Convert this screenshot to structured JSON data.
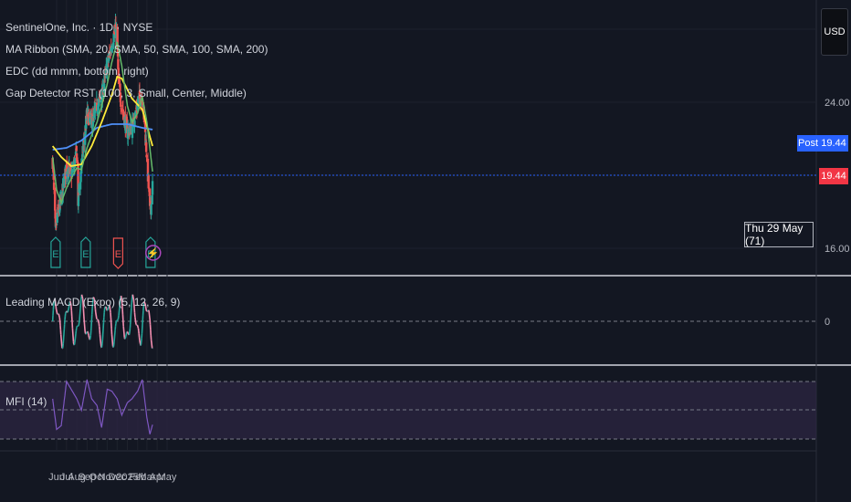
{
  "legend": {
    "symbol": "SentinelOne, Inc. · 1D · NYSE",
    "ma_ribbon": "MA Ribbon (SMA, 20, SMA, 50, SMA, 100, SMA, 200)",
    "edc": "EDC (dd mmm, bottom, right)",
    "gap_detector": "Gap Detector RST (100, 3, Small, Center, Middle)",
    "macd": "Leading MACD (Expo) (5, 12, 26, 9)",
    "mfi": "MFI (14)"
  },
  "currency": "USD",
  "date_tooltip": "Thu 29 May (71)",
  "post_label": "Post",
  "post_price": "19.44",
  "last_price": "19.44",
  "colors": {
    "background": "#131722",
    "up": "#26a69a",
    "down": "#ef5350",
    "sma20": "#66bb6a",
    "sma50": "#ffeb3b",
    "sma100": "#4f8ff7",
    "mfi_line": "#7e57c2",
    "post_tag": "#2962ff",
    "last_tag": "#f23645"
  },
  "chart_data": {
    "type": "candlestick",
    "price_axis": {
      "ticks": [
        "24.00",
        "16.00"
      ],
      "tick_values": [
        24,
        16
      ],
      "range": [
        14.6,
        29.2
      ]
    },
    "macd_axis": {
      "zero_label": "0"
    },
    "x_axis": {
      "labels": [
        "Jun",
        "Jul",
        "Aug",
        "Sep",
        "Oct",
        "Nov",
        "Dec",
        "2025",
        "Feb",
        "Mar",
        "Apr",
        "May"
      ]
    },
    "price_path": {
      "dates": [
        "2024-05-20",
        "2024-05-29",
        "2024-06-01",
        "2024-06-15",
        "2024-07-01",
        "2024-07-15",
        "2024-08-01",
        "2024-08-05",
        "2024-08-15",
        "2024-09-01",
        "2024-09-15",
        "2024-10-01",
        "2024-10-15",
        "2024-11-01",
        "2024-11-15",
        "2024-11-25",
        "2024-12-01",
        "2024-12-05",
        "2024-12-15",
        "2025-01-01",
        "2025-01-15",
        "2025-02-01",
        "2025-02-15",
        "2025-03-01",
        "2025-03-10",
        "2025-03-14",
        "2025-03-18"
      ],
      "closes": [
        20.8,
        16.8,
        17.6,
        18.6,
        20.5,
        20.0,
        21.2,
        18.6,
        20.5,
        23.4,
        22.8,
        23.8,
        24.2,
        26.0,
        27.2,
        28.0,
        27.6,
        25.0,
        23.8,
        22.4,
        22.6,
        23.9,
        24.5,
        21.0,
        18.0,
        18.4,
        19.44
      ]
    },
    "sma20": {
      "dates": [
        "2024-05-20",
        "2024-06-01",
        "2024-06-15",
        "2024-07-01",
        "2024-07-15",
        "2024-08-01",
        "2024-08-15",
        "2024-09-01",
        "2024-09-15",
        "2024-10-01",
        "2024-10-15",
        "2024-11-01",
        "2024-11-15",
        "2024-12-01",
        "2024-12-15",
        "2025-01-01",
        "2025-01-15",
        "2025-02-01",
        "2025-02-15",
        "2025-03-01",
        "2025-03-18"
      ],
      "values": [
        21.0,
        19.2,
        18.5,
        19.3,
        19.8,
        20.4,
        20.3,
        21.5,
        22.2,
        22.9,
        23.8,
        25.0,
        26.2,
        27.3,
        26.0,
        23.8,
        22.9,
        23.4,
        24.3,
        22.9,
        20.2
      ]
    },
    "sma50": {
      "dates": [
        "2024-05-20",
        "2024-06-15",
        "2024-07-15",
        "2024-08-15",
        "2024-09-15",
        "2024-10-15",
        "2024-11-15",
        "2024-12-01",
        "2024-12-15",
        "2025-01-15",
        "2025-02-15",
        "2025-03-18"
      ],
      "values": [
        21.6,
        21.0,
        20.5,
        20.6,
        21.6,
        22.9,
        24.4,
        25.4,
        25.3,
        24.2,
        23.6,
        21.6
      ]
    },
    "sma100": {
      "dates": [
        "2024-05-20",
        "2024-07-01",
        "2024-08-15",
        "2024-10-01",
        "2024-11-15",
        "2025-01-01",
        "2025-02-15",
        "2025-03-18"
      ],
      "values": [
        21.4,
        21.5,
        21.9,
        22.6,
        22.8,
        22.8,
        22.6,
        22.5
      ]
    },
    "earnings_markers": [
      {
        "date": "2024-05-29",
        "label": "E",
        "type": "up"
      },
      {
        "date": "2024-08-28",
        "label": "E",
        "type": "up"
      },
      {
        "date": "2024-12-04",
        "label": "E",
        "type": "down"
      },
      {
        "date": "2025-03-12",
        "label": "E",
        "type": "up"
      },
      {
        "date": "2025-03-20",
        "label": "⚡",
        "type": "dividend"
      }
    ],
    "mfi": {
      "dates": [
        "2024-05-20",
        "2024-06-01",
        "2024-06-15",
        "2024-07-01",
        "2024-07-15",
        "2024-08-01",
        "2024-08-15",
        "2024-09-01",
        "2024-09-15",
        "2024-10-01",
        "2024-10-15",
        "2024-11-01",
        "2024-11-15",
        "2024-12-01",
        "2024-12-15",
        "2025-01-01",
        "2025-01-15",
        "2025-02-01",
        "2025-02-15",
        "2025-03-01",
        "2025-03-10",
        "2025-03-18"
      ],
      "values": [
        62,
        30,
        34,
        80,
        72,
        62,
        50,
        82,
        62,
        55,
        32,
        72,
        70,
        62,
        45,
        58,
        62,
        70,
        82,
        42,
        25,
        35
      ]
    }
  }
}
